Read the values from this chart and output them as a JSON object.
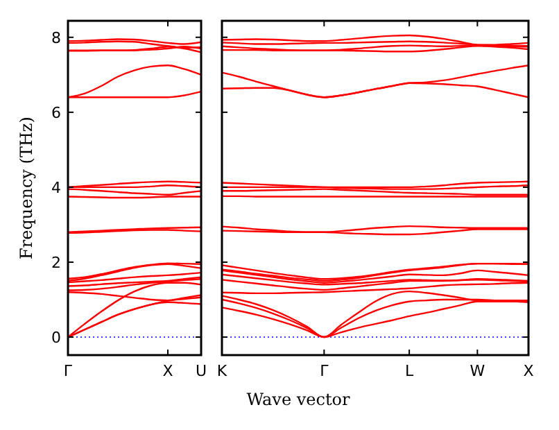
{
  "chart_data": [
    {
      "type": "line",
      "ylabel": "Frequency (THz)",
      "categories": [
        "Γ",
        null,
        null,
        null,
        null,
        null,
        "X",
        null,
        "U"
      ],
      "ylim": [
        -0.48,
        8.44
      ],
      "yticks": [
        0,
        2,
        4,
        6,
        8
      ],
      "ref_lines": [
        {
          "axis": "y",
          "value": 0,
          "color": "#0000ff",
          "line_style": "dotted"
        }
      ],
      "series": [
        {
          "color": "#ff0000",
          "values": [
            0,
            0.2,
            0.4,
            0.6,
            0.75,
            0.87,
            0.93,
            0.91,
            0.88
          ]
        },
        {
          "color": "#ff0000",
          "values": [
            0,
            0.2,
            0.4,
            0.6,
            0.75,
            0.87,
            0.97,
            1.02,
            1.06
          ]
        },
        {
          "color": "#ff0000",
          "values": [
            0,
            0.35,
            0.68,
            0.98,
            1.22,
            1.38,
            1.45,
            1.45,
            1.4
          ]
        },
        {
          "color": "#ff0000",
          "values": [
            1.2,
            1.18,
            1.15,
            1.1,
            1.05,
            1.0,
            0.98,
            1.05,
            1.12
          ]
        },
        {
          "color": "#ff0000",
          "values": [
            1.25,
            1.26,
            1.29,
            1.34,
            1.4,
            1.45,
            1.48,
            1.52,
            1.55
          ]
        },
        {
          "color": "#ff0000",
          "values": [
            1.36,
            1.38,
            1.41,
            1.44,
            1.46,
            1.48,
            1.5,
            1.55,
            1.6
          ]
        },
        {
          "color": "#ff0000",
          "values": [
            1.46,
            1.49,
            1.52,
            1.56,
            1.6,
            1.63,
            1.65,
            1.68,
            1.72
          ]
        },
        {
          "color": "#ff0000",
          "values": [
            1.5,
            1.56,
            1.65,
            1.75,
            1.85,
            1.92,
            1.95,
            1.9,
            1.84
          ]
        },
        {
          "color": "#ff0000",
          "values": [
            1.56,
            1.6,
            1.68,
            1.78,
            1.87,
            1.93,
            1.97,
            1.96,
            1.95
          ]
        },
        {
          "color": "#ff0000",
          "values": [
            2.78,
            2.79,
            2.81,
            2.83,
            2.85,
            2.86,
            2.86,
            2.84,
            2.82
          ]
        },
        {
          "color": "#ff0000",
          "values": [
            2.8,
            2.82,
            2.84,
            2.86,
            2.88,
            2.9,
            2.91,
            2.92,
            2.93
          ]
        },
        {
          "color": "#ff0000",
          "values": [
            3.75,
            3.74,
            3.73,
            3.72,
            3.72,
            3.73,
            3.75,
            3.75,
            3.75
          ]
        },
        {
          "color": "#ff0000",
          "values": [
            3.95,
            3.93,
            3.9,
            3.87,
            3.84,
            3.82,
            3.8,
            3.85,
            3.9
          ]
        },
        {
          "color": "#ff0000",
          "values": [
            4.0,
            4.03,
            4.06,
            4.09,
            4.12,
            4.14,
            4.15,
            4.14,
            4.12
          ]
        },
        {
          "color": "#ff0000",
          "values": [
            4.0,
            4.0,
            4.0,
            4.0,
            4.0,
            4.02,
            4.05,
            4.03,
            4.0
          ]
        },
        {
          "color": "#ff0000",
          "values": [
            6.4,
            6.4,
            6.4,
            6.4,
            6.4,
            6.4,
            6.4,
            6.45,
            6.55
          ]
        },
        {
          "color": "#ff0000",
          "values": [
            6.4,
            6.5,
            6.7,
            6.95,
            7.12,
            7.22,
            7.25,
            7.15,
            7.0
          ]
        },
        {
          "color": "#ff0000",
          "values": [
            7.65,
            7.65,
            7.65,
            7.65,
            7.65,
            7.67,
            7.7,
            7.75,
            7.7
          ]
        },
        {
          "color": "#ff0000",
          "values": [
            7.64,
            7.64,
            7.65,
            7.65,
            7.66,
            7.7,
            7.75,
            7.7,
            7.6
          ]
        },
        {
          "color": "#ff0000",
          "values": [
            7.85,
            7.86,
            7.88,
            7.89,
            7.88,
            7.82,
            7.77,
            7.72,
            7.74
          ]
        },
        {
          "color": "#ff0000",
          "values": [
            7.9,
            7.91,
            7.93,
            7.95,
            7.94,
            7.9,
            7.85,
            7.82,
            7.87
          ]
        }
      ]
    },
    {
      "type": "line",
      "xlabel": "Wave vector",
      "tick_labels": "x",
      "categories": [
        "K",
        null,
        null,
        null,
        null,
        null,
        "Γ",
        null,
        null,
        null,
        null,
        "L",
        null,
        null,
        null,
        "W",
        null,
        null,
        "X"
      ],
      "ylim": [
        -0.48,
        8.44
      ],
      "yticks": [
        0,
        2,
        4,
        6,
        8
      ],
      "ref_lines": [
        {
          "axis": "y",
          "value": 0,
          "color": "#0000ff",
          "line_style": "dotted"
        }
      ],
      "series": [
        {
          "color": "#ff0000",
          "values": [
            0.79,
            0.7,
            0.6,
            0.48,
            0.34,
            0.18,
            0,
            0.13,
            0.25,
            0.35,
            0.45,
            0.56,
            0.65,
            0.75,
            0.85,
            0.95,
            0.95,
            0.95,
            0.95
          ]
        },
        {
          "color": "#ff0000",
          "values": [
            1.0,
            0.9,
            0.78,
            0.63,
            0.45,
            0.24,
            0,
            0.25,
            0.5,
            0.7,
            0.85,
            0.95,
            0.98,
            1.0,
            1.0,
            1.0,
            0.98,
            0.96,
            0.93
          ]
        },
        {
          "color": "#ff0000",
          "values": [
            1.1,
            1.0,
            0.88,
            0.72,
            0.52,
            0.28,
            0,
            0.33,
            0.65,
            0.95,
            1.15,
            1.22,
            1.18,
            1.12,
            1.05,
            0.98,
            0.98,
            0.98,
            0.98
          ]
        },
        {
          "color": "#ff0000",
          "values": [
            1.19,
            1.18,
            1.17,
            1.17,
            1.18,
            1.19,
            1.2,
            1.22,
            1.24,
            1.26,
            1.28,
            1.3,
            1.34,
            1.38,
            1.4,
            1.41,
            1.42,
            1.44,
            1.45
          ]
        },
        {
          "color": "#ff0000",
          "values": [
            1.53,
            1.48,
            1.43,
            1.38,
            1.33,
            1.29,
            1.26,
            1.3,
            1.35,
            1.4,
            1.45,
            1.5,
            1.5,
            1.5,
            1.52,
            1.53,
            1.52,
            1.5,
            1.48
          ]
        },
        {
          "color": "#ff0000",
          "values": [
            1.67,
            1.62,
            1.57,
            1.52,
            1.47,
            1.43,
            1.4,
            1.42,
            1.44,
            1.47,
            1.5,
            1.53,
            1.52,
            1.51,
            1.52,
            1.55,
            1.54,
            1.52,
            1.5
          ]
        },
        {
          "color": "#ff0000",
          "values": [
            1.78,
            1.72,
            1.66,
            1.6,
            1.54,
            1.49,
            1.45,
            1.48,
            1.52,
            1.57,
            1.62,
            1.67,
            1.66,
            1.65,
            1.7,
            1.78,
            1.74,
            1.7,
            1.65
          ]
        },
        {
          "color": "#ff0000",
          "values": [
            1.8,
            1.75,
            1.69,
            1.64,
            1.58,
            1.54,
            1.5,
            1.53,
            1.58,
            1.65,
            1.72,
            1.78,
            1.82,
            1.86,
            1.92,
            1.96,
            1.96,
            1.95,
            1.95
          ]
        },
        {
          "color": "#ff0000",
          "values": [
            1.92,
            1.85,
            1.78,
            1.71,
            1.65,
            1.59,
            1.55,
            1.57,
            1.61,
            1.67,
            1.74,
            1.8,
            1.84,
            1.88,
            1.93,
            1.96,
            1.96,
            1.96,
            1.95
          ]
        },
        {
          "color": "#ff0000",
          "values": [
            2.95,
            2.92,
            2.88,
            2.85,
            2.82,
            2.8,
            2.8,
            2.78,
            2.76,
            2.75,
            2.74,
            2.74,
            2.76,
            2.8,
            2.84,
            2.88,
            2.88,
            2.88,
            2.88
          ]
        },
        {
          "color": "#ff0000",
          "values": [
            2.84,
            2.83,
            2.82,
            2.81,
            2.8,
            2.8,
            2.8,
            2.83,
            2.87,
            2.91,
            2.94,
            2.96,
            2.95,
            2.93,
            2.92,
            2.91,
            2.91,
            2.91,
            2.91
          ]
        },
        {
          "color": "#ff0000",
          "values": [
            4.12,
            4.1,
            4.08,
            4.06,
            4.04,
            4.02,
            4.0,
            4.0,
            4.0,
            4.0,
            4.0,
            4.0,
            4.02,
            4.05,
            4.09,
            4.12,
            4.13,
            4.14,
            4.15
          ]
        },
        {
          "color": "#ff0000",
          "values": [
            4.0,
            4.0,
            4.0,
            4.0,
            4.0,
            4.0,
            4.0,
            3.98,
            3.97,
            3.96,
            3.95,
            3.95,
            3.95,
            3.96,
            3.98,
            4.0,
            4.02,
            4.03,
            4.05
          ]
        },
        {
          "color": "#ff0000",
          "values": [
            3.9,
            3.9,
            3.91,
            3.92,
            3.93,
            3.94,
            3.95,
            3.93,
            3.91,
            3.89,
            3.87,
            3.85,
            3.84,
            3.83,
            3.82,
            3.8,
            3.8,
            3.8,
            3.8
          ]
        },
        {
          "color": "#ff0000",
          "values": [
            3.76,
            3.76,
            3.75,
            3.75,
            3.75,
            3.75,
            3.75,
            3.75,
            3.75,
            3.75,
            3.75,
            3.75,
            3.75,
            3.75,
            3.75,
            3.75,
            3.75,
            3.75,
            3.75
          ]
        },
        {
          "color": "#ff0000",
          "values": [
            7.06,
            6.95,
            6.82,
            6.7,
            6.58,
            6.47,
            6.4,
            6.45,
            6.53,
            6.62,
            6.7,
            6.78,
            6.8,
            6.85,
            6.93,
            7.02,
            7.1,
            7.18,
            7.25
          ]
        },
        {
          "color": "#ff0000",
          "values": [
            6.63,
            6.64,
            6.65,
            6.65,
            6.58,
            6.47,
            6.4,
            6.45,
            6.53,
            6.62,
            6.7,
            6.78,
            6.77,
            6.75,
            6.72,
            6.69,
            6.6,
            6.5,
            6.4
          ]
        },
        {
          "color": "#ff0000",
          "values": [
            7.93,
            7.94,
            7.95,
            7.94,
            7.92,
            7.9,
            7.9,
            7.93,
            7.97,
            8.01,
            8.04,
            8.05,
            8.02,
            7.96,
            7.88,
            7.8,
            7.8,
            7.82,
            7.85
          ]
        },
        {
          "color": "#ff0000",
          "values": [
            7.86,
            7.84,
            7.82,
            7.82,
            7.83,
            7.84,
            7.85,
            7.85,
            7.86,
            7.87,
            7.88,
            7.89,
            7.88,
            7.86,
            7.83,
            7.8,
            7.79,
            7.78,
            7.77
          ]
        },
        {
          "color": "#ff0000",
          "values": [
            7.76,
            7.73,
            7.7,
            7.68,
            7.66,
            7.65,
            7.65,
            7.65,
            7.64,
            7.63,
            7.62,
            7.62,
            7.64,
            7.68,
            7.73,
            7.77,
            7.76,
            7.75,
            7.75
          ]
        },
        {
          "color": "#ff0000",
          "values": [
            7.66,
            7.66,
            7.66,
            7.65,
            7.65,
            7.65,
            7.65,
            7.67,
            7.7,
            7.74,
            7.77,
            7.78,
            7.77,
            7.76,
            7.77,
            7.78,
            7.75,
            7.72,
            7.68
          ]
        }
      ]
    }
  ]
}
